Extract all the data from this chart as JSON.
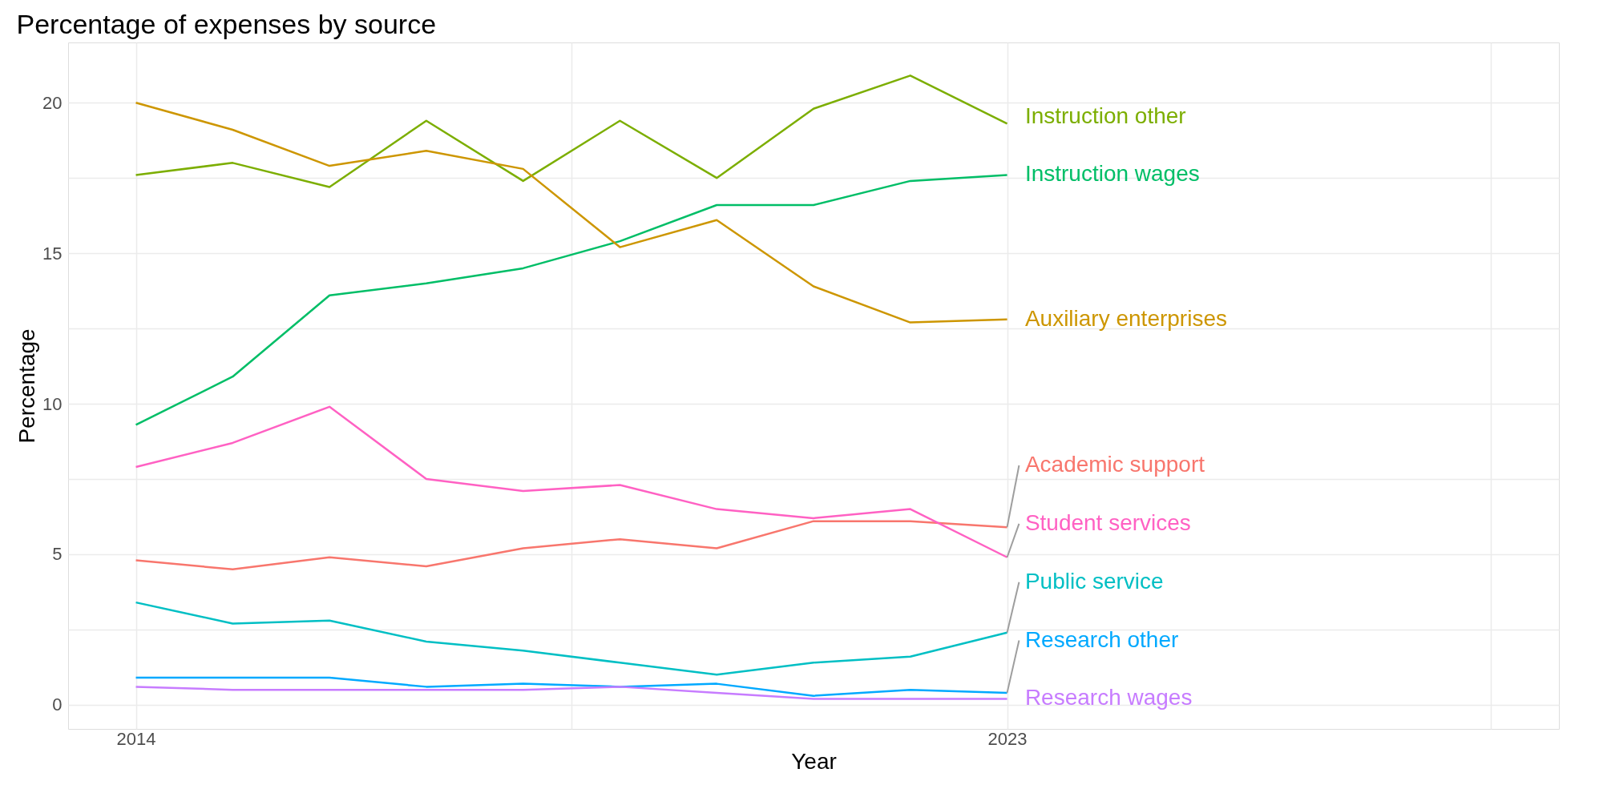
{
  "chart_data": {
    "type": "line",
    "title": "Percentage of expenses by source",
    "xlabel": "Year",
    "ylabel": "Percentage",
    "x": [
      2014,
      2015,
      2016,
      2017,
      2018,
      2019,
      2020,
      2021,
      2022,
      2023
    ],
    "series": [
      {
        "name": "Instruction other",
        "color": "#7cae00",
        "values": [
          17.6,
          18.0,
          17.2,
          19.4,
          17.4,
          19.4,
          17.5,
          19.8,
          20.9,
          19.3
        ]
      },
      {
        "name": "Instruction wages",
        "color": "#00be67",
        "values": [
          9.3,
          10.9,
          13.6,
          14.0,
          14.5,
          15.4,
          16.6,
          16.6,
          17.4,
          17.6
        ]
      },
      {
        "name": "Auxiliary enterprises",
        "color": "#cd9600",
        "values": [
          20.0,
          19.1,
          17.9,
          18.4,
          17.8,
          15.2,
          16.1,
          13.9,
          12.7,
          12.8
        ]
      },
      {
        "name": "Academic support",
        "color": "#f8766d",
        "values": [
          4.8,
          4.5,
          4.9,
          4.6,
          5.2,
          5.5,
          5.2,
          6.1,
          6.1,
          5.9
        ]
      },
      {
        "name": "Student services",
        "color": "#ff61c3",
        "values": [
          7.9,
          8.7,
          9.9,
          7.5,
          7.1,
          7.3,
          6.5,
          6.2,
          6.5,
          4.9
        ]
      },
      {
        "name": "Public service",
        "color": "#00bfc4",
        "values": [
          3.4,
          2.7,
          2.8,
          2.1,
          1.8,
          1.4,
          1.0,
          1.4,
          1.6,
          2.4
        ]
      },
      {
        "name": "Research other",
        "color": "#00a9ff",
        "values": [
          0.9,
          0.9,
          0.9,
          0.6,
          0.7,
          0.6,
          0.7,
          0.3,
          0.5,
          0.4
        ]
      },
      {
        "name": "Research wages",
        "color": "#c77cff",
        "values": [
          0.6,
          0.5,
          0.5,
          0.5,
          0.5,
          0.6,
          0.4,
          0.2,
          0.2,
          0.2
        ]
      }
    ],
    "xlim": [
      2013.3,
      2028.7
    ],
    "xticks": [
      2014,
      {
        "value": 2018.5,
        "label": null
      },
      2023,
      {
        "value": 2028,
        "label": null
      }
    ],
    "ylim": [
      -0.8,
      22
    ],
    "yticks": [
      0,
      {
        "value": 2.5,
        "label": null
      },
      5,
      {
        "value": 7.5,
        "label": null
      },
      10,
      {
        "value": 12.5,
        "label": null
      },
      15,
      {
        "value": 17.5,
        "label": null
      },
      20
    ],
    "grid": true,
    "legend": false,
    "marker": "none",
    "line_style": "solid"
  }
}
